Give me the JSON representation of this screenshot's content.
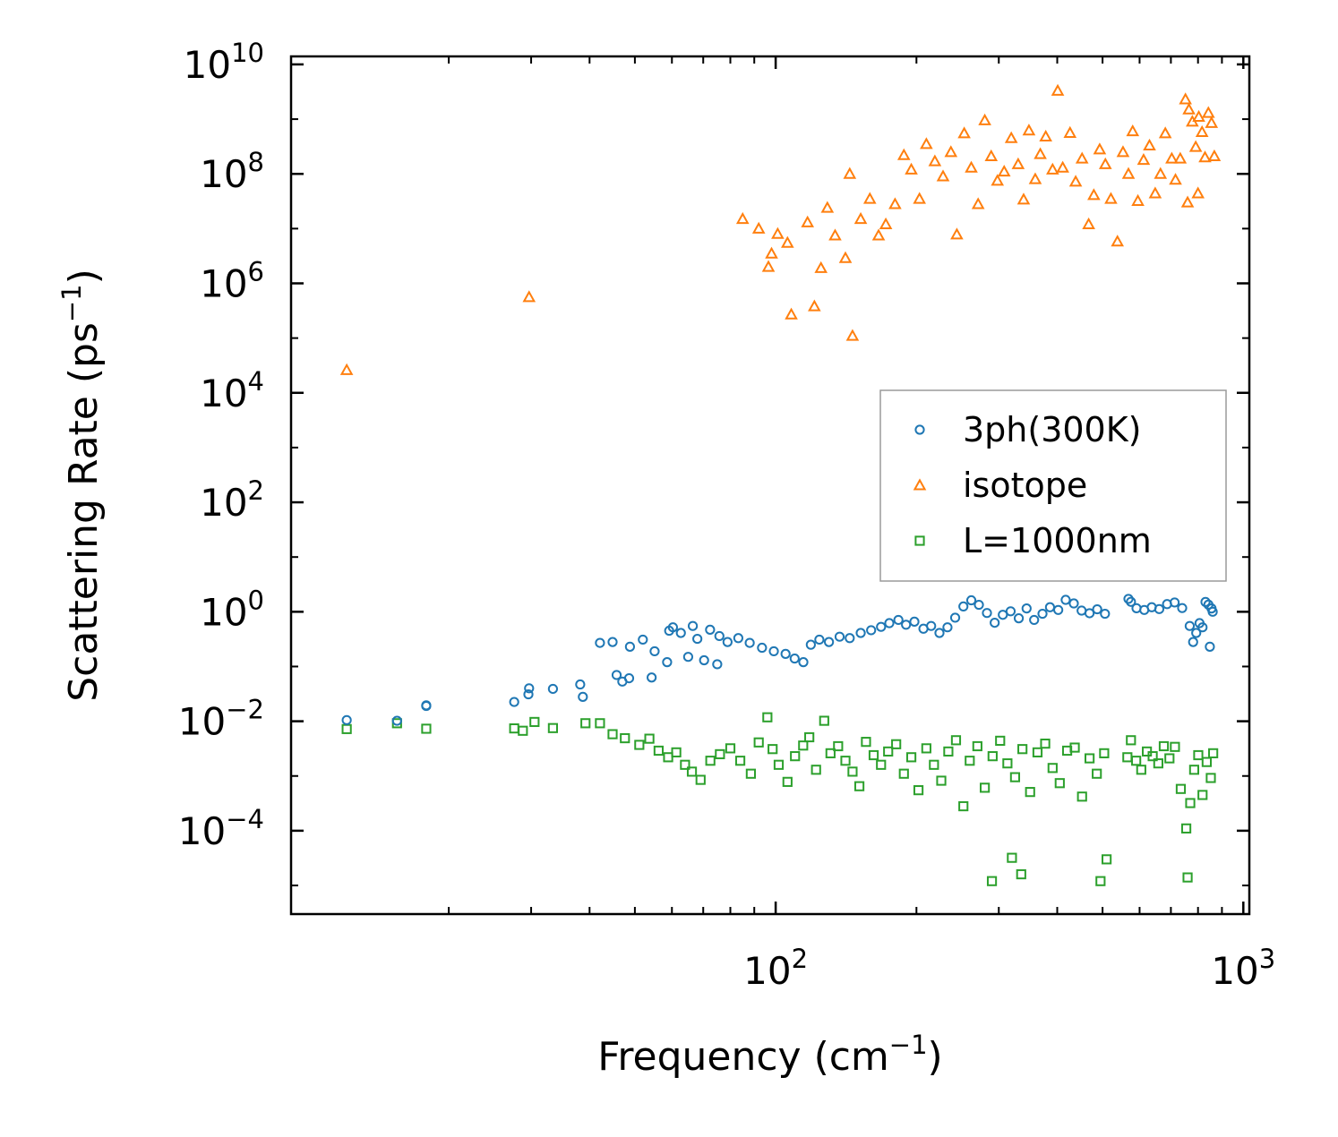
{
  "chart_data": {
    "type": "scatter",
    "xscale": "log",
    "yscale": "log",
    "xlim": [
      9.2,
      1030
    ],
    "ylim": [
      3e-06,
      14000000000.0
    ],
    "xlabel": {
      "text": "Frequency (cm",
      "sup": "−1",
      "close": ")"
    },
    "ylabel": {
      "text": "Scattering Rate (ps",
      "sup": "−1",
      "close": ")"
    },
    "x_major_ticks": [
      {
        "value": 100,
        "base": "10",
        "exp": "2"
      },
      {
        "value": 1000,
        "base": "10",
        "exp": "3"
      }
    ],
    "x_minor_ticks": [
      20,
      30,
      40,
      50,
      60,
      70,
      80,
      90,
      200,
      300,
      400,
      500,
      600,
      700,
      800,
      900
    ],
    "y_major_ticks": [
      {
        "value": 0.0001,
        "base": "10",
        "exp": "−4"
      },
      {
        "value": 0.01,
        "base": "10",
        "exp": "−2"
      },
      {
        "value": 1,
        "base": "10",
        "exp": "0"
      },
      {
        "value": 100,
        "base": "10",
        "exp": "2"
      },
      {
        "value": 10000.0,
        "base": "10",
        "exp": "4"
      },
      {
        "value": 1000000.0,
        "base": "10",
        "exp": "6"
      },
      {
        "value": 100000000.0,
        "base": "10",
        "exp": "8"
      },
      {
        "value": 10000000000.0,
        "base": "10",
        "exp": "10"
      }
    ],
    "legend_position": "center-right",
    "series": [
      {
        "name": "3ph(300K)",
        "marker": "circle",
        "color": "#1f77b4",
        "points": [
          [
            12.1,
            0.0105
          ],
          [
            15.5,
            0.0102
          ],
          [
            17.9,
            0.019
          ],
          [
            17.9,
            0.0195
          ],
          [
            27.6,
            0.0225
          ],
          [
            29.6,
            0.031
          ],
          [
            29.7,
            0.04
          ],
          [
            33.4,
            0.039
          ],
          [
            38.2,
            0.047
          ],
          [
            38.7,
            0.0279
          ],
          [
            45.7,
            0.07
          ],
          [
            47.0,
            0.053
          ],
          [
            48.6,
            0.061
          ],
          [
            54.3,
            0.063
          ],
          [
            58.6,
            0.12
          ],
          [
            65.0,
            0.15
          ],
          [
            70.3,
            0.13
          ],
          [
            75.0,
            0.11
          ],
          [
            42.1,
            0.27
          ],
          [
            44.8,
            0.28
          ],
          [
            48.8,
            0.23
          ],
          [
            52.0,
            0.31
          ],
          [
            55.1,
            0.19
          ],
          [
            59.2,
            0.45
          ],
          [
            60.3,
            0.52
          ],
          [
            62.7,
            0.41
          ],
          [
            66.5,
            0.55
          ],
          [
            68.0,
            0.32
          ],
          [
            72.4,
            0.47
          ],
          [
            75.8,
            0.36
          ],
          [
            78.9,
            0.28
          ],
          [
            83.2,
            0.33
          ],
          [
            88.0,
            0.27
          ],
          [
            93.5,
            0.22
          ],
          [
            99.1,
            0.19
          ],
          [
            105.0,
            0.17
          ],
          [
            109.8,
            0.14
          ],
          [
            114.6,
            0.12
          ],
          [
            118.9,
            0.25
          ],
          [
            124.0,
            0.31
          ],
          [
            130.0,
            0.28
          ],
          [
            137.0,
            0.35
          ],
          [
            144.0,
            0.33
          ],
          [
            152.0,
            0.41
          ],
          [
            160.0,
            0.46
          ],
          [
            168.0,
            0.53
          ],
          [
            175.0,
            0.62
          ],
          [
            183.0,
            0.71
          ],
          [
            190.0,
            0.58
          ],
          [
            198.0,
            0.66
          ],
          [
            207.0,
            0.49
          ],
          [
            215.0,
            0.55
          ],
          [
            224.0,
            0.41
          ],
          [
            233.0,
            0.52
          ],
          [
            242.0,
            0.78
          ],
          [
            252.0,
            1.25
          ],
          [
            262.0,
            1.62
          ],
          [
            272.0,
            1.34
          ],
          [
            283.0,
            0.95
          ],
          [
            294.0,
            0.63
          ],
          [
            306.0,
            0.88
          ],
          [
            318.0,
            1.02
          ],
          [
            331.0,
            0.76
          ],
          [
            344.0,
            1.15
          ],
          [
            357.0,
            0.71
          ],
          [
            372.0,
            0.92
          ],
          [
            386.0,
            1.21
          ],
          [
            402.0,
            1.08
          ],
          [
            417.0,
            1.65
          ],
          [
            434.0,
            1.42
          ],
          [
            451.0,
            1.05
          ],
          [
            469.0,
            0.94
          ],
          [
            487.0,
            1.11
          ],
          [
            506.0,
            0.92
          ],
          [
            568.0,
            1.72
          ],
          [
            575.0,
            1.52
          ],
          [
            591.0,
            1.16
          ],
          [
            614.0,
            1.08
          ],
          [
            637.0,
            1.21
          ],
          [
            661.0,
            1.12
          ],
          [
            687.0,
            1.38
          ],
          [
            713.0,
            1.48
          ],
          [
            740.0,
            1.17
          ],
          [
            768.0,
            0.55
          ],
          [
            781.0,
            0.28
          ],
          [
            793.0,
            0.41
          ],
          [
            806.0,
            0.62
          ],
          [
            818.0,
            0.52
          ],
          [
            830.0,
            1.51
          ],
          [
            842.0,
            1.35
          ],
          [
            855.0,
            1.15
          ],
          [
            848.0,
            0.23
          ],
          [
            860.0,
            1.0
          ]
        ]
      },
      {
        "name": "isotope",
        "marker": "triangle",
        "color": "#ff7f0e",
        "points": [
          [
            12.1,
            26000.0
          ],
          [
            29.7,
            560000.0
          ],
          [
            85.0,
            15000000.0
          ],
          [
            92.0,
            10000000.0
          ],
          [
            96.5,
            2000000.0
          ],
          [
            98.0,
            3500000.0
          ],
          [
            101.0,
            8000000.0
          ],
          [
            106.0,
            5500000.0
          ],
          [
            108.0,
            270000.0
          ],
          [
            117.0,
            13000000.0
          ],
          [
            121.0,
            380000.0
          ],
          [
            125.0,
            1900000.0
          ],
          [
            129.0,
            24000000.0
          ],
          [
            134.0,
            7500000.0
          ],
          [
            141.0,
            2900000.0
          ],
          [
            144.0,
            100000000.0
          ],
          [
            146.0,
            110000.0
          ],
          [
            152.0,
            15000000.0
          ],
          [
            159.0,
            35000000.0
          ],
          [
            166.0,
            7500000.0
          ],
          [
            172.0,
            12000000.0
          ],
          [
            180.0,
            28000000.0
          ],
          [
            188.0,
            220000000.0
          ],
          [
            195.0,
            120000000.0
          ],
          [
            203.0,
            35000000.0
          ],
          [
            210.0,
            350000000.0
          ],
          [
            219.0,
            170000000.0
          ],
          [
            228.0,
            90000000.0
          ],
          [
            237.0,
            250000000.0
          ],
          [
            244.0,
            7800000.0
          ],
          [
            253.0,
            550000000.0
          ],
          [
            262.0,
            130000000.0
          ],
          [
            271.0,
            28000000.0
          ],
          [
            280.0,
            950000000.0
          ],
          [
            289.0,
            210000000.0
          ],
          [
            298.0,
            75000000.0
          ],
          [
            308.0,
            110000000.0
          ],
          [
            319.0,
            450000000.0
          ],
          [
            330.0,
            150000000.0
          ],
          [
            339.0,
            34000000.0
          ],
          [
            348.0,
            620000000.0
          ],
          [
            359.0,
            80000000.0
          ],
          [
            368.0,
            230000000.0
          ],
          [
            378.0,
            480000000.0
          ],
          [
            391.0,
            120000000.0
          ],
          [
            401.0,
            3300000000.0
          ],
          [
            411.0,
            130000000.0
          ],
          [
            426.0,
            560000000.0
          ],
          [
            438.0,
            72000000.0
          ],
          [
            452.0,
            190000000.0
          ],
          [
            467.0,
            12000000.0
          ],
          [
            479.0,
            41000000.0
          ],
          [
            493.0,
            280000000.0
          ],
          [
            507.0,
            150000000.0
          ],
          [
            521.0,
            35000000.0
          ],
          [
            538.0,
            5800000.0
          ],
          [
            553.0,
            250000000.0
          ],
          [
            568.0,
            100000000.0
          ],
          [
            580.0,
            600000000.0
          ],
          [
            595.0,
            32000000.0
          ],
          [
            612.0,
            180000000.0
          ],
          [
            630.0,
            330000000.0
          ],
          [
            648.0,
            44000000.0
          ],
          [
            665.0,
            100000000.0
          ],
          [
            681.0,
            550000000.0
          ],
          [
            703.0,
            190000000.0
          ],
          [
            716.0,
            78000000.0
          ],
          [
            733.0,
            190000000.0
          ],
          [
            752.0,
            2300000000.0
          ],
          [
            765.0,
            1500000000.0
          ],
          [
            778.0,
            900000000.0
          ],
          [
            791.0,
            310000000.0
          ],
          [
            803.0,
            1100000000.0
          ],
          [
            816.0,
            580000000.0
          ],
          [
            828.0,
            200000000.0
          ],
          [
            842.0,
            1300000000.0
          ],
          [
            855.0,
            850000000.0
          ],
          [
            867.0,
            210000000.0
          ],
          [
            760.0,
            30000000.0
          ],
          [
            800.0,
            44000000.0
          ]
        ]
      },
      {
        "name": "L=1000nm",
        "marker": "square",
        "color": "#2ca02c",
        "points": [
          [
            12.1,
            0.0072
          ],
          [
            15.5,
            0.0092
          ],
          [
            17.9,
            0.0073
          ],
          [
            27.6,
            0.0074
          ],
          [
            28.8,
            0.0067
          ],
          [
            30.5,
            0.0097
          ],
          [
            33.4,
            0.0075
          ],
          [
            39.2,
            0.0092
          ],
          [
            42.1,
            0.0092
          ],
          [
            44.8,
            0.0058
          ],
          [
            47.6,
            0.0049
          ],
          [
            51.1,
            0.0037
          ],
          [
            53.7,
            0.0048
          ],
          [
            56.2,
            0.0029
          ],
          [
            58.9,
            0.0022
          ],
          [
            61.3,
            0.0027
          ],
          [
            64.0,
            0.0016
          ],
          [
            66.2,
            0.0012
          ],
          [
            69.1,
            0.00085
          ],
          [
            72.5,
            0.0019
          ],
          [
            76.0,
            0.0025
          ],
          [
            80.0,
            0.0032
          ],
          [
            84.0,
            0.0019
          ],
          [
            88.5,
            0.0011
          ],
          [
            92.0,
            0.0041
          ],
          [
            96.0,
            0.0118
          ],
          [
            98.5,
            0.0031
          ],
          [
            101.5,
            0.0016
          ],
          [
            106.0,
            0.00078
          ],
          [
            110.0,
            0.0023
          ],
          [
            114.5,
            0.0036
          ],
          [
            118.0,
            0.0051
          ],
          [
            122.0,
            0.0013
          ],
          [
            127.0,
            0.0102
          ],
          [
            131.0,
            0.0026
          ],
          [
            136.0,
            0.0035
          ],
          [
            141.0,
            0.0019
          ],
          [
            146.0,
            0.0012
          ],
          [
            151.0,
            0.00065
          ],
          [
            156.0,
            0.0042
          ],
          [
            162.0,
            0.0024
          ],
          [
            168.0,
            0.0016
          ],
          [
            174.0,
            0.0028
          ],
          [
            181.0,
            0.0038
          ],
          [
            188.0,
            0.0011
          ],
          [
            195.0,
            0.0022
          ],
          [
            202.0,
            0.00055
          ],
          [
            210.0,
            0.0032
          ],
          [
            218.0,
            0.0016
          ],
          [
            226.0,
            0.00082
          ],
          [
            234.0,
            0.0028
          ],
          [
            243.0,
            0.0045
          ],
          [
            252.0,
            0.00028
          ],
          [
            260.0,
            0.0019
          ],
          [
            270.0,
            0.0035
          ],
          [
            280.0,
            0.00061
          ],
          [
            291.0,
            0.0023
          ],
          [
            302.0,
            0.0044
          ],
          [
            313.0,
            0.0017
          ],
          [
            325.0,
            0.00095
          ],
          [
            337.0,
            0.0031
          ],
          [
            350.0,
            0.00051
          ],
          [
            363.0,
            0.0027
          ],
          [
            377.0,
            0.0039
          ],
          [
            391.0,
            0.0014
          ],
          [
            405.0,
            0.00074
          ],
          [
            420.0,
            0.0029
          ],
          [
            436.0,
            0.0033
          ],
          [
            452.0,
            0.00042
          ],
          [
            469.0,
            0.0021
          ],
          [
            486.0,
            0.0011
          ],
          [
            504.0,
            0.0026
          ],
          [
            565.0,
            0.0022
          ],
          [
            575.0,
            0.0045
          ],
          [
            590.0,
            0.0019
          ],
          [
            605.0,
            0.0013
          ],
          [
            622.0,
            0.0028
          ],
          [
            640.0,
            0.0023
          ],
          [
            658.0,
            0.0017
          ],
          [
            676.0,
            0.0035
          ],
          [
            695.0,
            0.0021
          ],
          [
            714.0,
            0.0034
          ],
          [
            735.0,
            0.00058
          ],
          [
            755.0,
            0.00011
          ],
          [
            770.0,
            0.00032
          ],
          [
            785.0,
            0.0013
          ],
          [
            801.0,
            0.0024
          ],
          [
            818.0,
            0.00045
          ],
          [
            835.0,
            0.0018
          ],
          [
            852.0,
            0.00092
          ],
          [
            862.0,
            0.0026
          ],
          [
            760.0,
            1.4e-05
          ],
          [
            290.0,
            1.2e-05
          ],
          [
            320.0,
            3.2e-05
          ],
          [
            335.0,
            1.6e-05
          ],
          [
            495.0,
            1.2e-05
          ],
          [
            510.0,
            3e-05
          ]
        ]
      }
    ]
  }
}
